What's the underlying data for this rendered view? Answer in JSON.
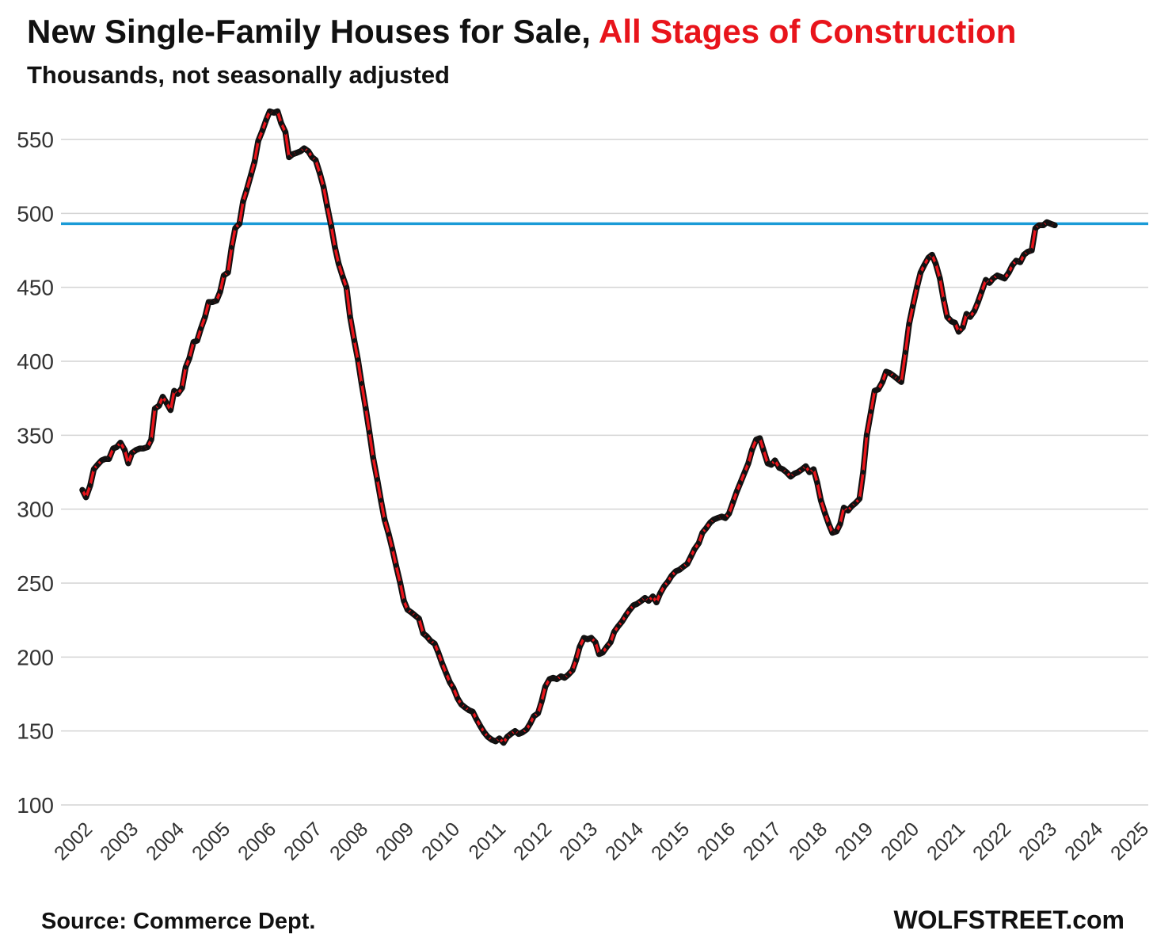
{
  "chart_data": {
    "type": "line",
    "title_part1": "New Single-Family Houses for Sale, ",
    "title_part2": "All Stages of Construction",
    "subtitle": "Thousands, not seasonally adjusted",
    "source": "Source: Commerce Dept.",
    "brand": "WOLFSTREET.com",
    "ylim": [
      100,
      575
    ],
    "y_ticks": [
      100,
      150,
      200,
      250,
      300,
      350,
      400,
      450,
      500,
      550
    ],
    "x_tick_labels": [
      "2002",
      "2003",
      "2004",
      "2005",
      "2006",
      "2007",
      "2008",
      "2009",
      "2010",
      "2011",
      "2012",
      "2013",
      "2014",
      "2015",
      "2016",
      "2017",
      "2018",
      "2019",
      "2020",
      "2021",
      "2022",
      "2023",
      "2024",
      "2025"
    ],
    "reference_line": {
      "value": 493,
      "color": "#1a9bd7"
    },
    "grid": true,
    "colors": {
      "title_accent": "#e8141b",
      "series_line": "#e8141b",
      "series_marker": "#111111",
      "grid": "#d4d4d4"
    },
    "series": [
      {
        "name": "",
        "start_year": 2002,
        "points": [
          [
            2002.0,
            313
          ],
          [
            2002.08,
            308
          ],
          [
            2002.17,
            316
          ],
          [
            2002.25,
            327
          ],
          [
            2002.33,
            330
          ],
          [
            2002.42,
            333
          ],
          [
            2002.5,
            334
          ],
          [
            2002.58,
            334
          ],
          [
            2002.67,
            341
          ],
          [
            2002.75,
            342
          ],
          [
            2002.83,
            345
          ],
          [
            2002.92,
            340
          ],
          [
            2003.0,
            331
          ],
          [
            2003.08,
            338
          ],
          [
            2003.17,
            340
          ],
          [
            2003.25,
            341
          ],
          [
            2003.33,
            341
          ],
          [
            2003.42,
            342
          ],
          [
            2003.5,
            347
          ],
          [
            2003.58,
            368
          ],
          [
            2003.67,
            370
          ],
          [
            2003.75,
            376
          ],
          [
            2003.83,
            372
          ],
          [
            2003.92,
            367
          ],
          [
            2004.0,
            380
          ],
          [
            2004.08,
            378
          ],
          [
            2004.17,
            382
          ],
          [
            2004.25,
            396
          ],
          [
            2004.33,
            402
          ],
          [
            2004.42,
            413
          ],
          [
            2004.5,
            414
          ],
          [
            2004.58,
            422
          ],
          [
            2004.67,
            430
          ],
          [
            2004.75,
            440
          ],
          [
            2004.83,
            440
          ],
          [
            2004.92,
            441
          ],
          [
            2005.0,
            447
          ],
          [
            2005.08,
            458
          ],
          [
            2005.17,
            460
          ],
          [
            2005.25,
            477
          ],
          [
            2005.33,
            490
          ],
          [
            2005.42,
            493
          ],
          [
            2005.5,
            508
          ],
          [
            2005.58,
            516
          ],
          [
            2005.67,
            526
          ],
          [
            2005.75,
            535
          ],
          [
            2005.83,
            549
          ],
          [
            2005.92,
            556
          ],
          [
            2006.0,
            563
          ],
          [
            2006.08,
            569
          ],
          [
            2006.17,
            568
          ],
          [
            2006.25,
            569
          ],
          [
            2006.33,
            561
          ],
          [
            2006.42,
            555
          ],
          [
            2006.5,
            538
          ],
          [
            2006.58,
            540
          ],
          [
            2006.67,
            541
          ],
          [
            2006.75,
            542
          ],
          [
            2006.83,
            544
          ],
          [
            2006.92,
            542
          ],
          [
            2007.0,
            538
          ],
          [
            2007.08,
            536
          ],
          [
            2007.17,
            527
          ],
          [
            2007.25,
            518
          ],
          [
            2007.33,
            505
          ],
          [
            2007.42,
            491
          ],
          [
            2007.5,
            477
          ],
          [
            2007.58,
            466
          ],
          [
            2007.67,
            457
          ],
          [
            2007.75,
            450
          ],
          [
            2007.83,
            430
          ],
          [
            2007.92,
            414
          ],
          [
            2008.0,
            401
          ],
          [
            2008.08,
            385
          ],
          [
            2008.17,
            368
          ],
          [
            2008.25,
            352
          ],
          [
            2008.33,
            335
          ],
          [
            2008.42,
            320
          ],
          [
            2008.5,
            306
          ],
          [
            2008.58,
            293
          ],
          [
            2008.67,
            283
          ],
          [
            2008.75,
            273
          ],
          [
            2008.83,
            262
          ],
          [
            2008.92,
            250
          ],
          [
            2009.0,
            238
          ],
          [
            2009.08,
            232
          ],
          [
            2009.17,
            230
          ],
          [
            2009.25,
            228
          ],
          [
            2009.33,
            226
          ],
          [
            2009.42,
            216
          ],
          [
            2009.5,
            214
          ],
          [
            2009.58,
            211
          ],
          [
            2009.67,
            209
          ],
          [
            2009.75,
            203
          ],
          [
            2009.83,
            196
          ],
          [
            2009.92,
            189
          ],
          [
            2010.0,
            183
          ],
          [
            2010.08,
            179
          ],
          [
            2010.17,
            172
          ],
          [
            2010.25,
            168
          ],
          [
            2010.33,
            166
          ],
          [
            2010.42,
            164
          ],
          [
            2010.5,
            163
          ],
          [
            2010.58,
            158
          ],
          [
            2010.67,
            153
          ],
          [
            2010.75,
            149
          ],
          [
            2010.83,
            146
          ],
          [
            2010.92,
            144
          ],
          [
            2011.0,
            143
          ],
          [
            2011.08,
            145
          ],
          [
            2011.17,
            142
          ],
          [
            2011.25,
            146
          ],
          [
            2011.33,
            148
          ],
          [
            2011.42,
            150
          ],
          [
            2011.5,
            148
          ],
          [
            2011.58,
            149
          ],
          [
            2011.67,
            151
          ],
          [
            2011.75,
            155
          ],
          [
            2011.83,
            160
          ],
          [
            2011.92,
            162
          ],
          [
            2012.0,
            170
          ],
          [
            2012.08,
            180
          ],
          [
            2012.17,
            185
          ],
          [
            2012.25,
            186
          ],
          [
            2012.33,
            185
          ],
          [
            2012.42,
            187
          ],
          [
            2012.5,
            186
          ],
          [
            2012.58,
            188
          ],
          [
            2012.67,
            191
          ],
          [
            2012.75,
            198
          ],
          [
            2012.83,
            207
          ],
          [
            2012.92,
            213
          ],
          [
            2013.0,
            212
          ],
          [
            2013.08,
            213
          ],
          [
            2013.17,
            210
          ],
          [
            2013.25,
            202
          ],
          [
            2013.33,
            203
          ],
          [
            2013.42,
            207
          ],
          [
            2013.5,
            210
          ],
          [
            2013.58,
            217
          ],
          [
            2013.67,
            221
          ],
          [
            2013.75,
            224
          ],
          [
            2013.83,
            228
          ],
          [
            2013.92,
            232
          ],
          [
            2014.0,
            235
          ],
          [
            2014.08,
            236
          ],
          [
            2014.17,
            238
          ],
          [
            2014.25,
            240
          ],
          [
            2014.33,
            238
          ],
          [
            2014.42,
            241
          ],
          [
            2014.5,
            237
          ],
          [
            2014.58,
            243
          ],
          [
            2014.67,
            248
          ],
          [
            2014.75,
            251
          ],
          [
            2014.83,
            255
          ],
          [
            2014.92,
            258
          ],
          [
            2015.0,
            259
          ],
          [
            2015.08,
            261
          ],
          [
            2015.17,
            263
          ],
          [
            2015.25,
            268
          ],
          [
            2015.33,
            273
          ],
          [
            2015.42,
            277
          ],
          [
            2015.5,
            284
          ],
          [
            2015.58,
            287
          ],
          [
            2015.67,
            291
          ],
          [
            2015.75,
            293
          ],
          [
            2015.83,
            294
          ],
          [
            2015.92,
            295
          ],
          [
            2016.0,
            294
          ],
          [
            2016.08,
            297
          ],
          [
            2016.17,
            305
          ],
          [
            2016.25,
            312
          ],
          [
            2016.33,
            318
          ],
          [
            2016.42,
            325
          ],
          [
            2016.5,
            331
          ],
          [
            2016.58,
            340
          ],
          [
            2016.67,
            347
          ],
          [
            2016.75,
            348
          ],
          [
            2016.83,
            340
          ],
          [
            2016.92,
            331
          ],
          [
            2017.0,
            330
          ],
          [
            2017.08,
            333
          ],
          [
            2017.17,
            328
          ],
          [
            2017.25,
            327
          ],
          [
            2017.33,
            325
          ],
          [
            2017.42,
            322
          ],
          [
            2017.5,
            324
          ],
          [
            2017.58,
            325
          ],
          [
            2017.67,
            327
          ],
          [
            2017.75,
            329
          ],
          [
            2017.83,
            325
          ],
          [
            2017.92,
            327
          ],
          [
            2018.0,
            318
          ],
          [
            2018.08,
            306
          ],
          [
            2018.17,
            297
          ],
          [
            2018.25,
            290
          ],
          [
            2018.33,
            284
          ],
          [
            2018.42,
            285
          ],
          [
            2018.5,
            290
          ],
          [
            2018.58,
            301
          ],
          [
            2018.67,
            299
          ],
          [
            2018.75,
            302
          ],
          [
            2018.83,
            304
          ],
          [
            2018.92,
            307
          ],
          [
            2019.0,
            325
          ],
          [
            2019.08,
            350
          ],
          [
            2019.17,
            366
          ],
          [
            2019.25,
            380
          ],
          [
            2019.33,
            381
          ],
          [
            2019.42,
            386
          ],
          [
            2019.5,
            393
          ],
          [
            2019.58,
            392
          ],
          [
            2019.67,
            390
          ],
          [
            2019.75,
            388
          ],
          [
            2019.83,
            386
          ],
          [
            2019.92,
            406
          ],
          [
            2020.0,
            425
          ],
          [
            2020.08,
            437
          ],
          [
            2020.17,
            450
          ],
          [
            2020.25,
            460
          ],
          [
            2020.33,
            465
          ],
          [
            2020.42,
            470
          ],
          [
            2020.5,
            472
          ],
          [
            2020.58,
            466
          ],
          [
            2020.67,
            456
          ],
          [
            2020.75,
            442
          ],
          [
            2020.83,
            430
          ],
          [
            2020.92,
            427
          ],
          [
            2021.0,
            426
          ],
          [
            2021.08,
            420
          ],
          [
            2021.17,
            423
          ],
          [
            2021.25,
            432
          ],
          [
            2021.33,
            430
          ],
          [
            2021.42,
            434
          ],
          [
            2021.5,
            440
          ],
          [
            2021.58,
            447
          ],
          [
            2021.67,
            455
          ],
          [
            2021.75,
            453
          ],
          [
            2021.83,
            456
          ],
          [
            2021.92,
            458
          ],
          [
            2022.0,
            457
          ],
          [
            2022.08,
            456
          ],
          [
            2022.17,
            460
          ],
          [
            2022.25,
            465
          ],
          [
            2022.33,
            468
          ],
          [
            2022.42,
            467
          ],
          [
            2022.5,
            472
          ],
          [
            2022.58,
            474
          ],
          [
            2022.67,
            475
          ],
          [
            2022.75,
            490
          ],
          [
            2022.83,
            492
          ],
          [
            2022.92,
            492
          ],
          [
            2023.0,
            494
          ],
          [
            2023.08,
            493
          ],
          [
            2023.17,
            492
          ]
        ]
      }
    ]
  }
}
